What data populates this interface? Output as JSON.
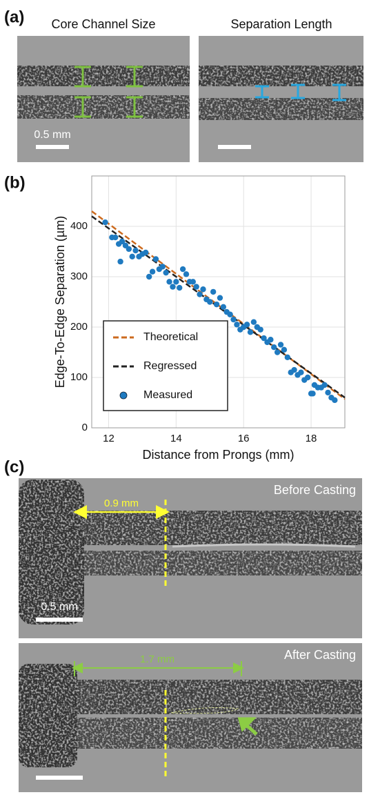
{
  "panel_a": {
    "label": "(a)",
    "left_title": "Core Channel Size",
    "right_title": "Separation Length",
    "scale_label": "0.5 mm"
  },
  "chart_data": {
    "type": "scatter",
    "panel_label": "(b)",
    "x_label": "Distance from Prongs (mm)",
    "y_label": "Edge-To-Edge Separation (µm)",
    "xlim": [
      11.5,
      19
    ],
    "ylim": [
      0,
      500
    ],
    "xticks": [
      12,
      14,
      16,
      18
    ],
    "yticks": [
      0,
      100,
      200,
      300,
      400
    ],
    "grid": true,
    "legend": "lower left",
    "lines": [
      {
        "name": "Theoretical",
        "color": "#cc6a1e",
        "x": [
          11.5,
          19
        ],
        "y": [
          430,
          57
        ]
      },
      {
        "name": "Regressed",
        "color": "#222222",
        "x": [
          11.5,
          19
        ],
        "y": [
          420,
          60
        ]
      }
    ],
    "series": [
      {
        "name": "Measured",
        "color": "#1f7ac0",
        "x": [
          11.9,
          12.1,
          12.2,
          12.3,
          12.35,
          12.4,
          12.5,
          12.6,
          12.7,
          12.8,
          12.9,
          13.0,
          13.1,
          13.2,
          13.3,
          13.4,
          13.5,
          13.6,
          13.7,
          13.8,
          13.9,
          14.0,
          14.1,
          14.2,
          14.3,
          14.4,
          14.5,
          14.6,
          14.7,
          14.8,
          14.9,
          15.0,
          15.1,
          15.2,
          15.3,
          15.4,
          15.5,
          15.6,
          15.7,
          15.8,
          15.9,
          16.0,
          16.1,
          16.2,
          16.3,
          16.4,
          16.5,
          16.6,
          16.7,
          16.8,
          16.9,
          17.0,
          17.1,
          17.2,
          17.3,
          17.4,
          17.5,
          17.6,
          17.7,
          17.8,
          17.9,
          18.0,
          18.05,
          18.1,
          18.2,
          18.3,
          18.4,
          18.5,
          18.6,
          18.7
        ],
        "y": [
          408,
          378,
          378,
          365,
          330,
          370,
          362,
          355,
          340,
          352,
          340,
          345,
          348,
          300,
          310,
          335,
          315,
          320,
          308,
          290,
          280,
          290,
          278,
          315,
          305,
          290,
          290,
          280,
          265,
          275,
          255,
          250,
          270,
          245,
          258,
          240,
          230,
          225,
          215,
          205,
          195,
          200,
          205,
          190,
          210,
          200,
          195,
          178,
          170,
          175,
          160,
          150,
          165,
          155,
          140,
          110,
          115,
          105,
          110,
          95,
          100,
          68,
          68,
          85,
          80,
          80,
          85,
          70,
          60,
          55
        ]
      }
    ]
  },
  "panel_c": {
    "label": "(c)",
    "before_title": "Before Casting",
    "before_distance": "0.9 mm",
    "scale_label": "0.5 mm",
    "after_title": "After Casting",
    "after_distance": "1.7 mm"
  }
}
